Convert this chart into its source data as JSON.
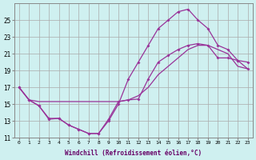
{
  "xlabel": "Windchill (Refroidissement éolien,°C)",
  "bg_color": "#cff0f0",
  "grid_color": "#aaaaaa",
  "line_color": "#993399",
  "xlim": [
    -0.5,
    23.5
  ],
  "ylim": [
    11,
    27
  ],
  "xticks": [
    0,
    1,
    2,
    3,
    4,
    5,
    6,
    7,
    8,
    9,
    10,
    11,
    12,
    13,
    14,
    15,
    16,
    17,
    18,
    19,
    20,
    21,
    22,
    23
  ],
  "yticks": [
    11,
    13,
    15,
    17,
    19,
    21,
    23,
    25
  ],
  "line1_x": [
    0,
    1,
    2,
    3,
    4,
    5,
    6,
    7,
    8,
    9,
    10,
    11,
    12,
    13,
    14,
    15,
    16,
    17,
    18,
    19,
    20,
    21,
    22,
    23
  ],
  "line1_y": [
    17.0,
    15.5,
    14.8,
    13.2,
    13.3,
    12.5,
    12.0,
    11.5,
    11.5,
    13.2,
    15.3,
    15.5,
    15.6,
    18.0,
    20.0,
    20.8,
    21.5,
    22.0,
    22.2,
    22.0,
    20.5,
    20.5,
    20.2,
    20.0
  ],
  "line2_x": [
    0,
    1,
    2,
    3,
    4,
    5,
    6,
    7,
    8,
    9,
    10,
    11,
    12,
    13,
    14,
    15,
    16,
    17,
    18,
    19,
    20,
    21,
    22,
    23
  ],
  "line2_y": [
    17.0,
    15.5,
    15.3,
    15.3,
    15.3,
    15.3,
    15.3,
    15.3,
    15.3,
    15.3,
    15.3,
    15.5,
    16.0,
    17.0,
    18.5,
    19.5,
    20.5,
    21.5,
    22.0,
    22.0,
    21.5,
    21.0,
    19.5,
    19.2
  ],
  "line3_x": [
    0,
    1,
    2,
    3,
    4,
    5,
    6,
    7,
    8,
    9,
    10,
    11,
    12,
    13,
    14,
    15,
    16,
    17,
    18,
    19,
    20,
    21,
    22,
    23
  ],
  "line3_y": [
    17.0,
    15.5,
    14.8,
    13.3,
    13.3,
    12.5,
    12.0,
    11.5,
    11.5,
    13.0,
    15.0,
    18.0,
    20.0,
    22.0,
    24.0,
    25.0,
    26.0,
    26.3,
    25.0,
    24.0,
    22.0,
    21.5,
    20.2,
    19.2
  ]
}
